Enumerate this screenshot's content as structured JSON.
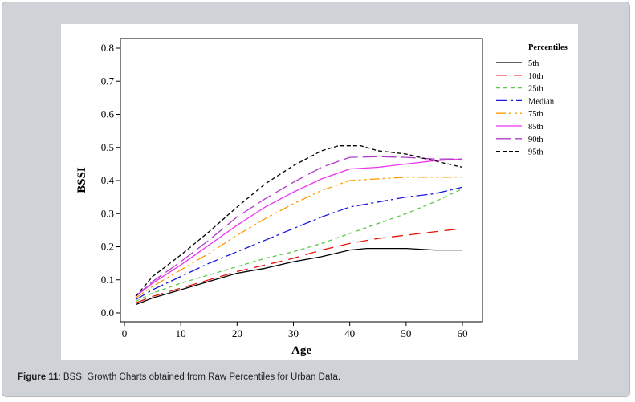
{
  "figure": {
    "caption_label": "Figure 11",
    "caption_text": ": BSSI Growth Charts obtained from Raw Percentiles for Urban Data."
  },
  "chart_data": {
    "type": "line",
    "xlabel": "Age",
    "ylabel": "BSSI",
    "xlim": [
      0,
      62
    ],
    "ylim": [
      0,
      0.8
    ],
    "x_ticks": [
      0,
      10,
      20,
      30,
      40,
      50,
      60
    ],
    "y_ticks": [
      0.0,
      0.1,
      0.2,
      0.3,
      0.4,
      0.5,
      0.6,
      0.7,
      0.8
    ],
    "y_tick_labels": [
      "0.0",
      "0.1",
      "0.2",
      "0.3",
      "0.4",
      "0.5",
      "0.6",
      "0.7",
      "0.8"
    ],
    "grid": false,
    "legend": {
      "title": "Percentiles",
      "placement": "right"
    },
    "series": [
      {
        "name": "5th",
        "color": "#000000",
        "dash": "solid",
        "x": [
          2,
          5,
          10,
          15,
          20,
          25,
          30,
          35,
          40,
          43,
          45,
          50,
          55,
          60
        ],
        "y": [
          0.025,
          0.045,
          0.07,
          0.095,
          0.12,
          0.135,
          0.155,
          0.17,
          0.19,
          0.195,
          0.195,
          0.195,
          0.19,
          0.19
        ]
      },
      {
        "name": "10th",
        "color": "#e8140c",
        "dash": "14 8",
        "x": [
          2,
          5,
          10,
          15,
          20,
          25,
          30,
          35,
          40,
          45,
          50,
          55,
          60
        ],
        "y": [
          0.03,
          0.05,
          0.075,
          0.1,
          0.125,
          0.145,
          0.165,
          0.19,
          0.21,
          0.225,
          0.235,
          0.245,
          0.255
        ]
      },
      {
        "name": "25th",
        "color": "#5cc94a",
        "dash": "5 4",
        "x": [
          2,
          5,
          10,
          15,
          20,
          25,
          30,
          35,
          40,
          45,
          50,
          55,
          60
        ],
        "y": [
          0.035,
          0.06,
          0.09,
          0.115,
          0.14,
          0.165,
          0.185,
          0.21,
          0.24,
          0.27,
          0.3,
          0.335,
          0.375
        ]
      },
      {
        "name": "Median",
        "color": "#1a1adb",
        "dash": "14 4 3 4",
        "x": [
          2,
          5,
          10,
          15,
          20,
          25,
          30,
          35,
          40,
          45,
          50,
          55,
          60
        ],
        "y": [
          0.04,
          0.07,
          0.11,
          0.15,
          0.185,
          0.22,
          0.255,
          0.29,
          0.32,
          0.335,
          0.35,
          0.36,
          0.38
        ]
      },
      {
        "name": "75th",
        "color": "#ff9900",
        "dash": "12 4 3 4 3 4",
        "x": [
          2,
          5,
          10,
          15,
          20,
          25,
          30,
          35,
          40,
          45,
          50,
          55,
          60
        ],
        "y": [
          0.045,
          0.08,
          0.13,
          0.18,
          0.235,
          0.285,
          0.33,
          0.37,
          0.4,
          0.405,
          0.41,
          0.41,
          0.41
        ]
      },
      {
        "name": "85th",
        "color": "#ee33ee",
        "dash": "solid",
        "x": [
          2,
          5,
          10,
          15,
          20,
          25,
          30,
          35,
          40,
          45,
          50,
          55,
          60
        ],
        "y": [
          0.05,
          0.09,
          0.145,
          0.205,
          0.265,
          0.32,
          0.365,
          0.405,
          0.435,
          0.44,
          0.45,
          0.46,
          0.465
        ]
      },
      {
        "name": "90th",
        "color": "#b03cc8",
        "dash": "18 6",
        "x": [
          2,
          5,
          10,
          15,
          20,
          25,
          30,
          35,
          40,
          45,
          50,
          55,
          60
        ],
        "y": [
          0.05,
          0.095,
          0.155,
          0.22,
          0.29,
          0.345,
          0.395,
          0.44,
          0.47,
          0.472,
          0.47,
          0.465,
          0.465
        ]
      },
      {
        "name": "95th",
        "color": "#000000",
        "dash": "5 3",
        "x": [
          2,
          5,
          10,
          15,
          20,
          25,
          30,
          35,
          38,
          42,
          45,
          50,
          55,
          60
        ],
        "y": [
          0.05,
          0.11,
          0.175,
          0.245,
          0.32,
          0.39,
          0.445,
          0.49,
          0.505,
          0.505,
          0.49,
          0.48,
          0.46,
          0.44
        ]
      }
    ]
  }
}
